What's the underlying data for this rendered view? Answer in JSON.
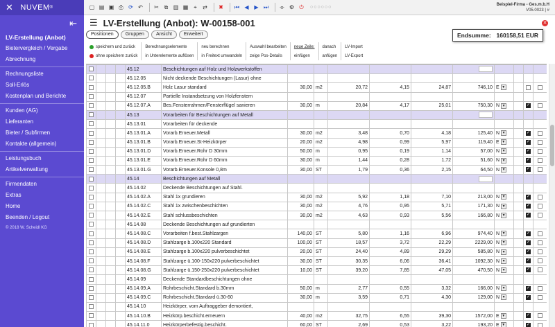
{
  "app": {
    "brand": "NUVEM",
    "brand_mark": "®",
    "collapse_glyph": "⇤"
  },
  "sidebar": {
    "groups": [
      [
        "LV-Erstellung (Anbot)",
        "Bietervergleich / Vergabe",
        "Abrechnung"
      ],
      [
        "Rechnungsliste",
        "Soll-Erlös",
        "Kostenplan und Berichte"
      ],
      [
        "Kunden (AG)",
        "Lieferanten",
        "Bieter / Subfirmen",
        "Kontakte (allgemein)"
      ],
      [
        "Leistungsbuch",
        "Artikelverwaltung"
      ],
      [
        "Firmendaten",
        "Extras",
        "Home",
        "Beenden / Logout"
      ]
    ],
    "copyright": "© 2018 W. Scheidl KG"
  },
  "company": {
    "name": "Beispiel-Firma - Ges.m.b.H",
    "version": "V05.0023 | #"
  },
  "title": "LV-Erstellung (Anbot): W-00158-001",
  "tabs": [
    "Positionen",
    "Gruppen",
    "Ansicht",
    "Erweitert"
  ],
  "total": {
    "label": "Endsumme:",
    "value": "160158,51 EUR"
  },
  "actions": {
    "save_back": "speichern und zurück",
    "nosave_back": "ohne speichern zurück",
    "calc1": "Berechnungselemente",
    "calc2": "in Unterelemente auflösen",
    "recalc1": "neu berechnen",
    "recalc2": "in Freitext umwandeln",
    "sel1": "Auswahl bearbeiten",
    "sel2": "zeige Pos-Details",
    "new1": "neue Zeile:",
    "new2": "einfügen",
    "after1": "danach",
    "after2": "anfügen",
    "lv1": "LV-Import",
    "lv2": "LV-Export"
  },
  "rows": [
    {
      "pos": "45.12",
      "text": "Beschichtungen auf Holz und Holzwerkstoffen",
      "type": "hdr"
    },
    {
      "pos": "45.12.05",
      "text": "Nicht deckende Beschichtungen (Lasur) ohne",
      "type": "sub"
    },
    {
      "pos": "45.12.05.B",
      "text": "Holz Lasur standard",
      "qty": "30,00",
      "unit": "m2",
      "p1": "20,72",
      "p2": "4,15",
      "ep": "24,87",
      "gp": "746,10",
      "flag": "E",
      "chk": false
    },
    {
      "pos": "45.12.07",
      "text": "Partielle Instandsetzung von Holzfenstern",
      "type": "sub"
    },
    {
      "pos": "45.12.07.A",
      "text": "Bes.Fensterrahmen/Fensterflügel sanieren",
      "qty": "30,00",
      "unit": "m",
      "p1": "20,84",
      "p2": "4,17",
      "ep": "25,01",
      "gp": "750,30",
      "flag": "N",
      "chk": true
    },
    {
      "pos": "45.13",
      "text": "Vorarbeiten für Beschichtungen auf Metall",
      "type": "hdr"
    },
    {
      "pos": "45.13.01",
      "text": "Vorarbeiten für deckende",
      "type": "sub"
    },
    {
      "pos": "45.13.01.A",
      "text": "Vorarb.Erneuer.Metall",
      "qty": "30,00",
      "unit": "m2",
      "p1": "3,48",
      "p2": "0,70",
      "ep": "4,18",
      "gp": "125,40",
      "flag": "N",
      "chk": true
    },
    {
      "pos": "45.13.01.B",
      "text": "Vorarb.Erneuer.St-Heizkörper",
      "qty": "20,00",
      "unit": "m2",
      "p1": "4,98",
      "p2": "0,99",
      "ep": "5,97",
      "gp": "119,40",
      "flag": "E",
      "chk": true
    },
    {
      "pos": "45.13.01.D",
      "text": "Vorarb.Erneuer.Rohr D 30mm",
      "qty": "50,00",
      "unit": "m",
      "p1": "0,95",
      "p2": "0,19",
      "ep": "1,14",
      "gp": "57,00",
      "flag": "N",
      "chk": true
    },
    {
      "pos": "45.13.01.E",
      "text": "Vorarb.Erneuer.Rohr D 60mm",
      "qty": "30,00",
      "unit": "m",
      "p1": "1,44",
      "p2": "0,28",
      "ep": "1,72",
      "gp": "51,60",
      "flag": "N",
      "chk": true
    },
    {
      "pos": "45.13.01.G",
      "text": "Vorarb.Erneuer.Konsole 0,8m",
      "qty": "30,00",
      "unit": "ST",
      "p1": "1,79",
      "p2": "0,36",
      "ep": "2,15",
      "gp": "64,50",
      "flag": "N",
      "chk": true
    },
    {
      "pos": "45.14",
      "text": "Beschichtungen auf Metall",
      "type": "hdr"
    },
    {
      "pos": "45.14.02",
      "text": "Deckende Beschichtungen auf Stahl.",
      "type": "sub"
    },
    {
      "pos": "45.14.02.A",
      "text": "Stahl 1x grundieren",
      "qty": "30,00",
      "unit": "m2",
      "p1": "5,92",
      "p2": "1,18",
      "ep": "7,10",
      "gp": "213,00",
      "flag": "N",
      "chk": true
    },
    {
      "pos": "45.14.02.C",
      "text": "Stahl 1x zwischenbeschichten",
      "qty": "30,00",
      "unit": "m2",
      "p1": "4,76",
      "p2": "0,95",
      "ep": "5,71",
      "gp": "171,30",
      "flag": "N",
      "chk": true
    },
    {
      "pos": "45.14.02.E",
      "text": "Stahl schlussbeschichten",
      "qty": "30,00",
      "unit": "m2",
      "p1": "4,63",
      "p2": "0,93",
      "ep": "5,56",
      "gp": "166,80",
      "flag": "N",
      "chk": true
    },
    {
      "pos": "45.14.08",
      "text": "Deckende Beschichtungen auf grundierten",
      "type": "sub"
    },
    {
      "pos": "45.14.08.C",
      "text": "Vorarbeiten f.best.Stahlzargen",
      "qty": "140,00",
      "unit": "ST",
      "p1": "5,80",
      "p2": "1,16",
      "ep": "6,96",
      "gp": "974,40",
      "flag": "N",
      "chk": true
    },
    {
      "pos": "45.14.08.D",
      "text": "Stahlzarge b.100x220 Standard",
      "qty": "100,00",
      "unit": "ST",
      "p1": "18,57",
      "p2": "3,72",
      "ep": "22,29",
      "gp": "2229,00",
      "flag": "N",
      "chk": true
    },
    {
      "pos": "45.14.08.E",
      "text": "Stahlzarge b.100x220 pulverbeschichtet",
      "qty": "20,00",
      "unit": "ST",
      "p1": "24,40",
      "p2": "4,89",
      "ep": "29,29",
      "gp": "585,80",
      "flag": "N",
      "chk": true
    },
    {
      "pos": "45.14.08.F",
      "text": "Stahlzarge ü.100-150x220 pulverbeschichtet",
      "qty": "30,00",
      "unit": "ST",
      "p1": "30,35",
      "p2": "6,06",
      "ep": "36,41",
      "gp": "1092,30",
      "flag": "N",
      "chk": true
    },
    {
      "pos": "45.14.08.G",
      "text": "Stahlzarge ü.150-250x220 pulverbeschichtet",
      "qty": "10,00",
      "unit": "ST",
      "p1": "39,20",
      "p2": "7,85",
      "ep": "47,05",
      "gp": "470,50",
      "flag": "N",
      "chk": true
    },
    {
      "pos": "45.14.09",
      "text": "Deckende Standardbeschichtungen ohne",
      "type": "sub"
    },
    {
      "pos": "45.14.09.A",
      "text": "Rohrbeschicht.Standard b.30mm",
      "qty": "50,00",
      "unit": "m",
      "p1": "2,77",
      "p2": "0,55",
      "ep": "3,32",
      "gp": "166,00",
      "flag": "N",
      "chk": true
    },
    {
      "pos": "45.14.09.C",
      "text": "Rohrbeschicht.Standard ü.30-60",
      "qty": "30,00",
      "unit": "m",
      "p1": "3,59",
      "p2": "0,71",
      "ep": "4,30",
      "gp": "129,00",
      "flag": "N",
      "chk": true
    },
    {
      "pos": "45.14.10",
      "text": "Heizkörper, vom Auftraggeber demontiert,",
      "type": "sub"
    },
    {
      "pos": "45.14.10.B",
      "text": "Heizkörp.beschicht.erneuern",
      "qty": "40,00",
      "unit": "m2",
      "p1": "32,75",
      "p2": "6,55",
      "ep": "39,30",
      "gp": "1572,00",
      "flag": "E",
      "chk": true
    },
    {
      "pos": "45.14.11.0",
      "text": "Heizkörperbefestig.beschicht.",
      "qty": "60,00",
      "unit": "ST",
      "p1": "2,69",
      "p2": "0,53",
      "ep": "3,22",
      "gp": "193,20",
      "flag": "E",
      "chk": true
    }
  ]
}
